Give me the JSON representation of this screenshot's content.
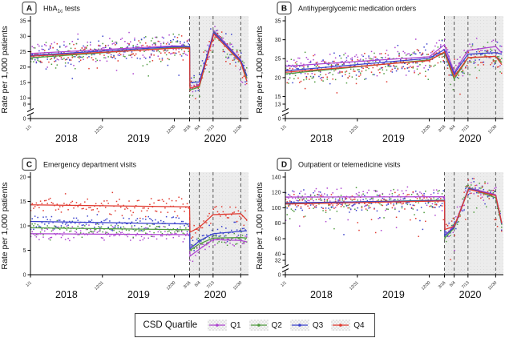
{
  "figure": {
    "legend": {
      "title": "CSD Quartile",
      "entries": [
        {
          "label": "Q1",
          "color": "#ad44cf"
        },
        {
          "label": "Q2",
          "color": "#4e9a3d"
        },
        {
          "label": "Q3",
          "color": "#3a41cc"
        },
        {
          "label": "Q4",
          "color": "#e0392f"
        }
      ]
    }
  },
  "chart_data": [
    {
      "type": "scatter",
      "id": "A",
      "title_parts": [
        {
          "t": "HbA"
        },
        {
          "t": "1c",
          "sub": true
        },
        {
          "t": " tests"
        }
      ],
      "ylabel": "Rate per 1,000 patients",
      "axis_break": true,
      "ylim_main": [
        8,
        35
      ],
      "y_ticks": [
        8,
        10,
        15,
        20,
        25,
        30,
        35
      ],
      "y_zero_label": "0",
      "x_ticks": [
        {
          "day": 0,
          "label": "1/1"
        },
        {
          "day": 364,
          "label": "12/31"
        },
        {
          "day": 728,
          "label": "12/30"
        },
        {
          "day": 805,
          "label": "3/16"
        },
        {
          "day": 854,
          "label": "5/4"
        },
        {
          "day": 924,
          "label": "7/13"
        },
        {
          "day": 1064,
          "label": "11/30"
        }
      ],
      "year_labels": [
        {
          "day": 182,
          "label": "2018"
        },
        {
          "day": 547,
          "label": "2019"
        },
        {
          "day": 935,
          "label": "2020"
        }
      ],
      "shade_start_day": 805,
      "shade_end_day": 1095,
      "dashed_days": [
        805,
        854,
        924,
        1064
      ],
      "scatter": {
        "start_day": 2,
        "interval_days": 7,
        "clip_min": 8.4,
        "clip_max": 34.5
      },
      "series": [
        {
          "name": "Q1",
          "color": "#ad44cf",
          "scatter_sd": 1.9,
          "outlier_rate": 0.05,
          "outlier_mag": 7,
          "trend": [
            [
              0,
              24.4
            ],
            [
              728,
              26.9
            ],
            [
              805,
              26.7
            ],
            [
              807,
              13.0
            ],
            [
              854,
              14.2
            ],
            [
              928,
              31.8
            ],
            [
              1064,
              22.3
            ],
            [
              1095,
              17.0
            ]
          ]
        },
        {
          "name": "Q2",
          "color": "#4e9a3d",
          "scatter_sd": 1.9,
          "outlier_rate": 0.05,
          "outlier_mag": 7,
          "trend": [
            [
              0,
              23.0
            ],
            [
              728,
              26.3
            ],
            [
              805,
              26.4
            ],
            [
              807,
              12.6
            ],
            [
              854,
              13.5
            ],
            [
              928,
              31.4
            ],
            [
              1064,
              21.9
            ],
            [
              1095,
              16.4
            ]
          ]
        },
        {
          "name": "Q3",
          "color": "#3a41cc",
          "scatter_sd": 1.9,
          "outlier_rate": 0.05,
          "outlier_mag": 7,
          "trend": [
            [
              0,
              23.8
            ],
            [
              728,
              26.6
            ],
            [
              805,
              26.7
            ],
            [
              807,
              15.0
            ],
            [
              854,
              15.2
            ],
            [
              928,
              31.2
            ],
            [
              1064,
              22.1
            ],
            [
              1095,
              17.2
            ]
          ]
        },
        {
          "name": "Q4",
          "color": "#e0392f",
          "scatter_sd": 1.9,
          "outlier_rate": 0.05,
          "outlier_mag": 7,
          "trend": [
            [
              0,
              23.5
            ],
            [
              728,
              26.1
            ],
            [
              805,
              26.2
            ],
            [
              807,
              13.2
            ],
            [
              854,
              13.9
            ],
            [
              928,
              30.7
            ],
            [
              1064,
              21.5
            ],
            [
              1095,
              15.4
            ]
          ]
        }
      ]
    },
    {
      "type": "scatter",
      "id": "B",
      "title_parts": [
        {
          "t": "Antihyperglycemic medication orders"
        }
      ],
      "ylabel": "Rate per 1,000 patients",
      "axis_break": true,
      "ylim_main": [
        13,
        35
      ],
      "y_ticks": [
        13,
        15,
        20,
        25,
        30,
        35
      ],
      "y_zero_label": "0",
      "x_ticks": [
        {
          "day": 0,
          "label": "1/1"
        },
        {
          "day": 364,
          "label": "12/31"
        },
        {
          "day": 728,
          "label": "12/30"
        },
        {
          "day": 805,
          "label": "3/16"
        },
        {
          "day": 854,
          "label": "5/4"
        },
        {
          "day": 924,
          "label": "7/13"
        },
        {
          "day": 1064,
          "label": "11/30"
        }
      ],
      "year_labels": [
        {
          "day": 182,
          "label": "2018"
        },
        {
          "day": 547,
          "label": "2019"
        },
        {
          "day": 935,
          "label": "2020"
        }
      ],
      "shade_start_day": 805,
      "shade_end_day": 1095,
      "dashed_days": [
        805,
        854,
        924,
        1064
      ],
      "scatter": {
        "start_day": 2,
        "interval_days": 7,
        "clip_min": 13.4,
        "clip_max": 34.5
      },
      "series": [
        {
          "name": "Q1",
          "color": "#ad44cf",
          "scatter_sd": 1.7,
          "outlier_rate": 0.05,
          "outlier_mag": 5,
          "trend": [
            [
              0,
              23.0
            ],
            [
              728,
              25.5
            ],
            [
              805,
              28.7
            ],
            [
              854,
              21.4
            ],
            [
              924,
              27.2
            ],
            [
              1064,
              28.2
            ],
            [
              1095,
              26.5
            ]
          ]
        },
        {
          "name": "Q2",
          "color": "#4e9a3d",
          "scatter_sd": 1.7,
          "outlier_rate": 0.05,
          "outlier_mag": 5,
          "trend": [
            [
              0,
              21.0
            ],
            [
              728,
              24.7
            ],
            [
              805,
              26.5
            ],
            [
              854,
              19.6
            ],
            [
              924,
              25.2
            ],
            [
              1064,
              25.6
            ],
            [
              1095,
              24.0
            ]
          ]
        },
        {
          "name": "Q3",
          "color": "#3a41cc",
          "scatter_sd": 1.7,
          "outlier_rate": 0.05,
          "outlier_mag": 5,
          "trend": [
            [
              0,
              21.8
            ],
            [
              728,
              25.1
            ],
            [
              805,
              27.4
            ],
            [
              854,
              21.0
            ],
            [
              924,
              26.2
            ],
            [
              1064,
              26.6
            ],
            [
              1095,
              26.2
            ]
          ]
        },
        {
          "name": "Q4",
          "color": "#e0392f",
          "scatter_sd": 1.7,
          "outlier_rate": 0.05,
          "outlier_mag": 5,
          "trend": [
            [
              0,
              21.4
            ],
            [
              728,
              24.5
            ],
            [
              805,
              26.8
            ],
            [
              854,
              20.2
            ],
            [
              924,
              25.3
            ],
            [
              1064,
              25.6
            ],
            [
              1095,
              23.4
            ]
          ]
        }
      ]
    },
    {
      "type": "scatter",
      "id": "C",
      "title_parts": [
        {
          "t": "Emergency department visits"
        }
      ],
      "ylabel": "Rate per 1,000 patients",
      "axis_break": false,
      "ylim_main": [
        0,
        20
      ],
      "y_ticks": [
        0,
        5,
        10,
        15,
        20
      ],
      "y_zero_label": "",
      "x_ticks": [
        {
          "day": 0,
          "label": "1/1"
        },
        {
          "day": 364,
          "label": "12/31"
        },
        {
          "day": 728,
          "label": "12/30"
        },
        {
          "day": 805,
          "label": "3/16"
        },
        {
          "day": 854,
          "label": "5/4"
        },
        {
          "day": 924,
          "label": "7/13"
        },
        {
          "day": 1064,
          "label": "11/30"
        }
      ],
      "year_labels": [
        {
          "day": 182,
          "label": "2018"
        },
        {
          "day": 547,
          "label": "2019"
        },
        {
          "day": 935,
          "label": "2020"
        }
      ],
      "shade_start_day": 805,
      "shade_end_day": 1095,
      "dashed_days": [
        805,
        854,
        924,
        1064
      ],
      "scatter": {
        "start_day": 2,
        "interval_days": 7,
        "clip_min": 0.5,
        "clip_max": 19.6
      },
      "series": [
        {
          "name": "Q1",
          "color": "#ad44cf",
          "scatter_sd": 0.75,
          "outlier_rate": 0,
          "outlier_mag": 0,
          "trend": [
            [
              0,
              8.4
            ],
            [
              805,
              8.2
            ],
            [
              807,
              3.8
            ],
            [
              854,
              5.2
            ],
            [
              924,
              7.2
            ],
            [
              1064,
              7.0
            ],
            [
              1095,
              6.7
            ]
          ]
        },
        {
          "name": "Q2",
          "color": "#4e9a3d",
          "scatter_sd": 0.75,
          "outlier_rate": 0,
          "outlier_mag": 0,
          "trend": [
            [
              0,
              9.6
            ],
            [
              805,
              9.2
            ],
            [
              807,
              5.0
            ],
            [
              854,
              6.3
            ],
            [
              924,
              7.5
            ],
            [
              1064,
              7.6
            ],
            [
              1095,
              7.5
            ]
          ]
        },
        {
          "name": "Q3",
          "color": "#3a41cc",
          "scatter_sd": 0.75,
          "outlier_rate": 0,
          "outlier_mag": 0,
          "trend": [
            [
              0,
              10.9
            ],
            [
              805,
              10.4
            ],
            [
              807,
              5.3
            ],
            [
              854,
              6.9
            ],
            [
              924,
              8.4
            ],
            [
              1064,
              8.9
            ],
            [
              1095,
              9.0
            ]
          ]
        },
        {
          "name": "Q4",
          "color": "#e0392f",
          "scatter_sd": 0.95,
          "outlier_rate": 0,
          "outlier_mag": 0,
          "trend": [
            [
              0,
              14.3
            ],
            [
              805,
              13.9
            ],
            [
              807,
              8.7
            ],
            [
              854,
              9.7
            ],
            [
              924,
              12.3
            ],
            [
              1064,
              12.5
            ],
            [
              1095,
              11.2
            ]
          ]
        }
      ]
    },
    {
      "type": "scatter",
      "id": "D",
      "title_parts": [
        {
          "t": "Outpatient or telemedicine visits"
        }
      ],
      "ylabel": "Rate per 1,000 patients",
      "axis_break": true,
      "ylim_main": [
        32,
        140
      ],
      "y_ticks": [
        32,
        40,
        60,
        80,
        100,
        120,
        140
      ],
      "y_zero_label": "0",
      "x_ticks": [
        {
          "day": 0,
          "label": "1/1"
        },
        {
          "day": 364,
          "label": "12/31"
        },
        {
          "day": 728,
          "label": "12/30"
        },
        {
          "day": 805,
          "label": "3/16"
        },
        {
          "day": 854,
          "label": "5/4"
        },
        {
          "day": 924,
          "label": "7/13"
        },
        {
          "day": 1064,
          "label": "11/30"
        }
      ],
      "year_labels": [
        {
          "day": 182,
          "label": "2018"
        },
        {
          "day": 547,
          "label": "2019"
        },
        {
          "day": 935,
          "label": "2020"
        }
      ],
      "shade_start_day": 805,
      "shade_end_day": 1095,
      "dashed_days": [
        805,
        854,
        924,
        1064
      ],
      "scatter": {
        "start_day": 2,
        "interval_days": 7,
        "clip_min": 33,
        "clip_max": 138
      },
      "series": [
        {
          "name": "Q1",
          "color": "#ad44cf",
          "scatter_sd": 6.5,
          "outlier_rate": 0.09,
          "outlier_mag": 38,
          "trend": [
            [
              0,
              114
            ],
            [
              805,
              114.5
            ],
            [
              807,
              64
            ],
            [
              854,
              76
            ],
            [
              928,
              126
            ],
            [
              1064,
              117
            ],
            [
              1095,
              80
            ]
          ]
        },
        {
          "name": "Q2",
          "color": "#4e9a3d",
          "scatter_sd": 6.5,
          "outlier_rate": 0.09,
          "outlier_mag": 38,
          "trend": [
            [
              0,
              106
            ],
            [
              805,
              110
            ],
            [
              807,
              61
            ],
            [
              854,
              74
            ],
            [
              928,
              126
            ],
            [
              1064,
              113
            ],
            [
              1095,
              78
            ]
          ]
        },
        {
          "name": "Q3",
          "color": "#3a41cc",
          "scatter_sd": 6.5,
          "outlier_rate": 0.09,
          "outlier_mag": 38,
          "trend": [
            [
              0,
              106.5
            ],
            [
              805,
              109.5
            ],
            [
              807,
              64
            ],
            [
              854,
              75
            ],
            [
              928,
              125
            ],
            [
              1064,
              116
            ],
            [
              1095,
              79
            ]
          ]
        },
        {
          "name": "Q4",
          "color": "#e0392f",
          "scatter_sd": 6.5,
          "outlier_rate": 0.09,
          "outlier_mag": 38,
          "trend": [
            [
              0,
              105
            ],
            [
              805,
              109
            ],
            [
              807,
              72
            ],
            [
              854,
              76
            ],
            [
              928,
              124
            ],
            [
              1064,
              116
            ],
            [
              1095,
              80
            ]
          ]
        }
      ]
    }
  ]
}
